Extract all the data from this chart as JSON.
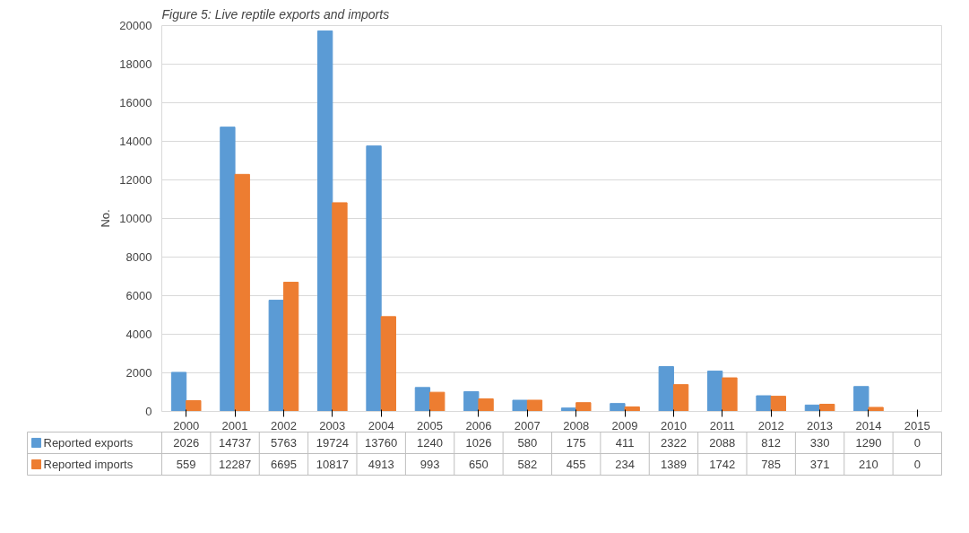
{
  "chart_data": {
    "type": "bar",
    "title": "Figure 5: Live reptile exports and imports",
    "ylabel": "No.",
    "categories": [
      "2000",
      "2001",
      "2002",
      "2003",
      "2004",
      "2005",
      "2006",
      "2007",
      "2008",
      "2009",
      "2010",
      "2011",
      "2012",
      "2013",
      "2014",
      "2015"
    ],
    "series": [
      {
        "name": "Reported exports",
        "color": "#5b9bd5",
        "values": [
          2026,
          14737,
          5763,
          19724,
          13760,
          1240,
          1026,
          580,
          175,
          411,
          2322,
          2088,
          812,
          330,
          1290,
          0
        ]
      },
      {
        "name": "Reported imports",
        "color": "#ed7d31",
        "values": [
          559,
          12287,
          6695,
          10817,
          4913,
          993,
          650,
          582,
          455,
          234,
          1389,
          1742,
          785,
          371,
          210,
          0
        ]
      }
    ],
    "ylim": [
      0,
      20000
    ],
    "yticks": [
      0,
      2000,
      4000,
      6000,
      8000,
      10000,
      12000,
      14000,
      16000,
      18000,
      20000
    ],
    "grid": "y",
    "legend": "bottom",
    "data_labels": true
  }
}
